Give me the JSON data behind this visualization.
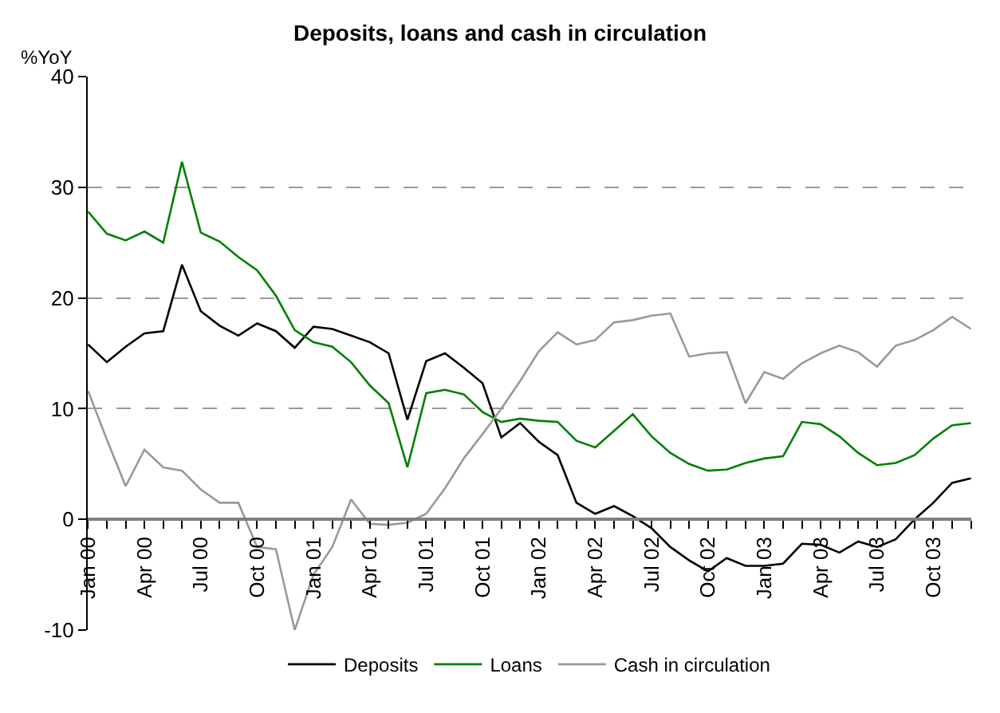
{
  "chart_data": {
    "type": "line",
    "title": "Deposits, loans and cash in circulation",
    "ylabel": "%YoY",
    "categories": [
      "Jan 00",
      null,
      null,
      "Apr 00",
      null,
      null,
      "Jul 00",
      null,
      null,
      "Oct 00",
      null,
      null,
      "Jan 01",
      null,
      null,
      "Apr 01",
      null,
      null,
      "Jul 01",
      null,
      null,
      "Oct 01",
      null,
      null,
      "Jan 02",
      null,
      null,
      "Apr 02",
      null,
      null,
      "Jul 02",
      null,
      null,
      "Oct 02",
      null,
      null,
      "Jan 03",
      null,
      null,
      "Apr 03",
      null,
      null,
      "Jul 03",
      null,
      null,
      "Oct 03",
      null,
      null
    ],
    "series": [
      {
        "name": "Deposits",
        "color": "#000000",
        "values": [
          15.8,
          14.2,
          15.6,
          16.8,
          17,
          23,
          18.8,
          17.5,
          16.6,
          17.7,
          17,
          15.5,
          17.4,
          17.2,
          16.6,
          16,
          15,
          9,
          14.3,
          15,
          13.7,
          12.3,
          7.4,
          8.7,
          7,
          5.8,
          1.5,
          0.5,
          1.2,
          0.3,
          -0.8,
          -2.5,
          -3.7,
          -4.7,
          -3.5,
          -4.2,
          -4.2,
          -4,
          -2.2,
          -2.3,
          -3,
          -2,
          -2.5,
          -1.8,
          0,
          1.5,
          3.3,
          3.7
        ]
      },
      {
        "name": "Loans",
        "color": "#008000",
        "values": [
          27.8,
          25.8,
          25.2,
          26,
          25,
          32.3,
          25.9,
          25.1,
          23.7,
          22.5,
          20.2,
          17.1,
          16,
          15.6,
          14.2,
          12.1,
          10.5,
          4.7,
          11.4,
          11.7,
          11.3,
          9.7,
          8.8,
          9.1,
          8.9,
          8.8,
          7.1,
          6.5,
          8,
          9.5,
          7.5,
          6,
          5,
          4.4,
          4.5,
          5.1,
          5.5,
          5.7,
          8.8,
          8.6,
          7.5,
          6,
          4.9,
          5.1,
          5.8,
          7.3,
          8.5,
          8.7
        ]
      },
      {
        "name": "Cash in circulation",
        "color": "#999999",
        "values": [
          11.6,
          7.2,
          3,
          6.3,
          4.7,
          4.4,
          2.7,
          1.5,
          1.5,
          -2.5,
          -2.7,
          -10,
          -5,
          -2.5,
          1.8,
          -0.4,
          -0.5,
          -0.3,
          0.5,
          2.8,
          5.5,
          7.7,
          10,
          12.5,
          15.2,
          16.9,
          15.8,
          16.2,
          17.8,
          18,
          18.4,
          18.6,
          14.7,
          15,
          15.1,
          10.5,
          13.3,
          12.7,
          14.1,
          15,
          15.7,
          15.1,
          13.8,
          15.7,
          16.2,
          17.1,
          18.3,
          17.2
        ]
      }
    ],
    "ylim": [
      -10,
      40
    ],
    "yticks": [
      -10,
      0,
      10,
      20,
      30,
      40
    ],
    "grid": "y",
    "legend": "bottom",
    "marker": "none",
    "line_style": "solid"
  }
}
